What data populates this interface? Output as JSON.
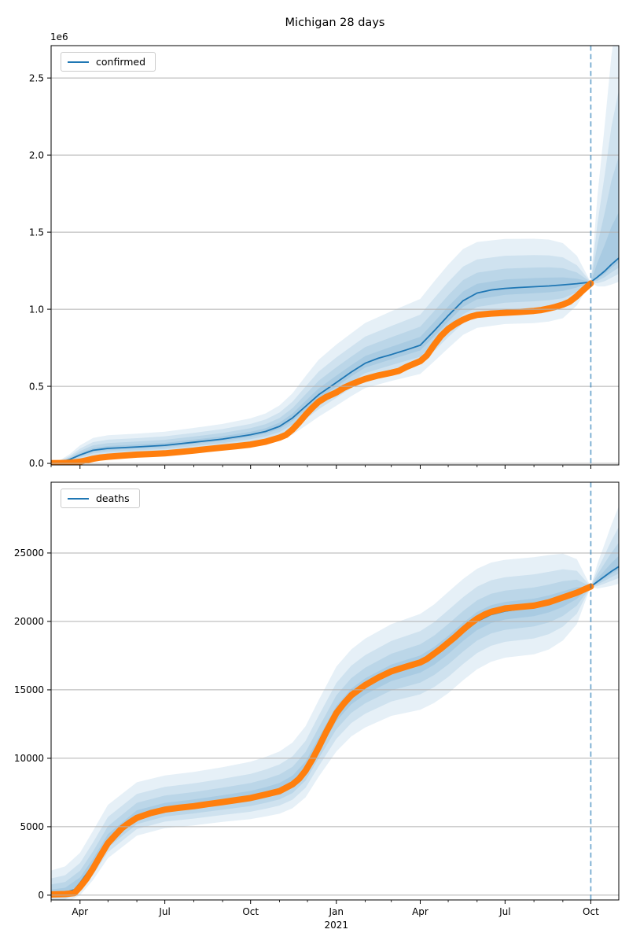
{
  "figure_title": "Michigan 28 days",
  "style": {
    "line_color": "#1f77b4",
    "marker_color": "#ff7f0e",
    "band_color_rgb": "31,119,180",
    "band_alpha": 0.11,
    "grid_color": "#b0b0b0",
    "spine_color": "#000000",
    "forecast_line_color": "rgba(31,119,180,0.65)"
  },
  "x_axis": {
    "start_date": "2020-03-01",
    "end_date": "2021-10-31",
    "days_total": 609,
    "forecast_start_day": 579,
    "forecast_horizon_days": 28,
    "major_ticks": [
      {
        "day": 31,
        "label": "Apr"
      },
      {
        "day": 122,
        "label": "Jul"
      },
      {
        "day": 214,
        "label": "Oct"
      },
      {
        "day": 306,
        "label": "Jan",
        "sublabel": "2021"
      },
      {
        "day": 396,
        "label": "Apr"
      },
      {
        "day": 487,
        "label": "Jul"
      },
      {
        "day": 579,
        "label": "Oct"
      }
    ],
    "minor_tick_days": [
      0,
      61,
      92,
      153,
      184,
      245,
      275,
      337,
      365,
      426,
      457,
      518,
      549
    ]
  },
  "chart_data": [
    {
      "type": "line",
      "title": "Michigan 28 days",
      "legend_label": "confirmed",
      "offset_label": "1e6",
      "ylim": [
        -10000,
        2710000
      ],
      "grid": true,
      "legend_position": "upper-left",
      "yticks": [
        {
          "v": 0,
          "label": "0.0"
        },
        {
          "v": 500000,
          "label": "0.5"
        },
        {
          "v": 1000000,
          "label": "1.0"
        },
        {
          "v": 1500000,
          "label": "1.5"
        },
        {
          "v": 2000000,
          "label": "2.0"
        },
        {
          "v": 2500000,
          "label": "2.5"
        }
      ],
      "actual": [
        [
          0,
          1000
        ],
        [
          10,
          2000
        ],
        [
          20,
          4000
        ],
        [
          31,
          11000
        ],
        [
          38,
          20000
        ],
        [
          45,
          30000
        ],
        [
          53,
          38000
        ],
        [
          61,
          43000
        ],
        [
          76,
          50000
        ],
        [
          92,
          57000
        ],
        [
          107,
          61000
        ],
        [
          122,
          65000
        ],
        [
          137,
          73000
        ],
        [
          153,
          83000
        ],
        [
          168,
          93000
        ],
        [
          184,
          103000
        ],
        [
          199,
          112000
        ],
        [
          214,
          122000
        ],
        [
          230,
          140000
        ],
        [
          245,
          167000
        ],
        [
          252,
          185000
        ],
        [
          259,
          220000
        ],
        [
          266,
          265000
        ],
        [
          273,
          315000
        ],
        [
          280,
          360000
        ],
        [
          287,
          400000
        ],
        [
          295,
          430000
        ],
        [
          306,
          460000
        ],
        [
          314,
          490000
        ],
        [
          322,
          512000
        ],
        [
          330,
          532000
        ],
        [
          337,
          548000
        ],
        [
          351,
          570000
        ],
        [
          365,
          588000
        ],
        [
          373,
          600000
        ],
        [
          381,
          625000
        ],
        [
          389,
          645000
        ],
        [
          396,
          663000
        ],
        [
          403,
          700000
        ],
        [
          411,
          770000
        ],
        [
          418,
          825000
        ],
        [
          426,
          872000
        ],
        [
          434,
          905000
        ],
        [
          442,
          932000
        ],
        [
          449,
          950000
        ],
        [
          457,
          963000
        ],
        [
          472,
          972000
        ],
        [
          487,
          977000
        ],
        [
          502,
          982000
        ],
        [
          518,
          989000
        ],
        [
          526,
          995000
        ],
        [
          534,
          1005000
        ],
        [
          541,
          1015000
        ],
        [
          549,
          1030000
        ],
        [
          556,
          1048000
        ],
        [
          564,
          1085000
        ],
        [
          571,
          1125000
        ],
        [
          579,
          1168000
        ]
      ],
      "median": [
        [
          0,
          2000
        ],
        [
          10,
          8000
        ],
        [
          20,
          25000
        ],
        [
          31,
          55000
        ],
        [
          45,
          85000
        ],
        [
          61,
          97000
        ],
        [
          92,
          107000
        ],
        [
          122,
          117000
        ],
        [
          153,
          137000
        ],
        [
          184,
          158000
        ],
        [
          214,
          186000
        ],
        [
          230,
          207000
        ],
        [
          245,
          240000
        ],
        [
          259,
          295000
        ],
        [
          273,
          370000
        ],
        [
          287,
          445000
        ],
        [
          306,
          525000
        ],
        [
          322,
          592000
        ],
        [
          337,
          650000
        ],
        [
          351,
          682000
        ],
        [
          365,
          706000
        ],
        [
          381,
          736000
        ],
        [
          396,
          766000
        ],
        [
          411,
          860000
        ],
        [
          426,
          958000
        ],
        [
          442,
          1055000
        ],
        [
          457,
          1105000
        ],
        [
          472,
          1125000
        ],
        [
          487,
          1135000
        ],
        [
          502,
          1141000
        ],
        [
          518,
          1146000
        ],
        [
          534,
          1151000
        ],
        [
          549,
          1158000
        ],
        [
          564,
          1166000
        ],
        [
          579,
          1176000
        ],
        [
          586,
          1208000
        ],
        [
          594,
          1248000
        ],
        [
          601,
          1290000
        ],
        [
          609,
          1332000
        ]
      ],
      "band": [
        [
          0,
          6000,
          3000
        ],
        [
          10,
          15000,
          6000
        ],
        [
          20,
          35000,
          15000
        ],
        [
          31,
          62000,
          40000
        ],
        [
          45,
          80000,
          52000
        ],
        [
          61,
          86000,
          56000
        ],
        [
          92,
          86000,
          56000
        ],
        [
          122,
          89000,
          58000
        ],
        [
          153,
          93000,
          61000
        ],
        [
          184,
          98000,
          66000
        ],
        [
          214,
          106000,
          73000
        ],
        [
          230,
          117000,
          80000
        ],
        [
          245,
          136000,
          92000
        ],
        [
          259,
          160000,
          108000
        ],
        [
          273,
          196000,
          126000
        ],
        [
          287,
          228000,
          142000
        ],
        [
          306,
          246000,
          151000
        ],
        [
          322,
          251000,
          156000
        ],
        [
          337,
          261000,
          161000
        ],
        [
          365,
          281000,
          171000
        ],
        [
          396,
          301000,
          186000
        ],
        [
          411,
          321000,
          198000
        ],
        [
          426,
          331000,
          211000
        ],
        [
          442,
          336000,
          221000
        ],
        [
          457,
          331000,
          226000
        ],
        [
          487,
          321000,
          231000
        ],
        [
          518,
          311000,
          236000
        ],
        [
          534,
          301000,
          231000
        ],
        [
          549,
          271000,
          216000
        ],
        [
          564,
          181000,
          141000
        ],
        [
          579,
          0,
          0
        ],
        [
          586,
          520000,
          60000
        ],
        [
          594,
          950000,
          100000
        ],
        [
          601,
          1350000,
          130000
        ],
        [
          609,
          1650000,
          155000
        ]
      ],
      "band_fractions": [
        1,
        0.66,
        0.4,
        0.18
      ]
    },
    {
      "type": "line",
      "title": "",
      "legend_label": "deaths",
      "offset_label": "",
      "ylim": [
        -350,
        30170
      ],
      "grid": true,
      "legend_position": "upper-left",
      "yticks": [
        {
          "v": 0,
          "label": "0"
        },
        {
          "v": 5000,
          "label": "5000"
        },
        {
          "v": 10000,
          "label": "10000"
        },
        {
          "v": 15000,
          "label": "15000"
        },
        {
          "v": 20000,
          "label": "20000"
        },
        {
          "v": 25000,
          "label": "25000"
        }
      ],
      "actual": [
        [
          0,
          50
        ],
        [
          15,
          80
        ],
        [
          25,
          150
        ],
        [
          31,
          600
        ],
        [
          38,
          1200
        ],
        [
          45,
          1950
        ],
        [
          53,
          2900
        ],
        [
          61,
          3800
        ],
        [
          69,
          4400
        ],
        [
          76,
          4900
        ],
        [
          84,
          5300
        ],
        [
          92,
          5650
        ],
        [
          107,
          6000
        ],
        [
          122,
          6250
        ],
        [
          137,
          6380
        ],
        [
          153,
          6500
        ],
        [
          168,
          6650
        ],
        [
          184,
          6800
        ],
        [
          199,
          6950
        ],
        [
          214,
          7100
        ],
        [
          230,
          7350
        ],
        [
          245,
          7600
        ],
        [
          259,
          8100
        ],
        [
          266,
          8500
        ],
        [
          273,
          9100
        ],
        [
          280,
          9900
        ],
        [
          287,
          10800
        ],
        [
          295,
          11900
        ],
        [
          306,
          13300
        ],
        [
          314,
          14000
        ],
        [
          322,
          14600
        ],
        [
          330,
          15000
        ],
        [
          337,
          15350
        ],
        [
          351,
          15900
        ],
        [
          365,
          16350
        ],
        [
          381,
          16700
        ],
        [
          396,
          17000
        ],
        [
          403,
          17250
        ],
        [
          411,
          17650
        ],
        [
          418,
          18000
        ],
        [
          426,
          18450
        ],
        [
          434,
          18900
        ],
        [
          442,
          19400
        ],
        [
          449,
          19800
        ],
        [
          457,
          20200
        ],
        [
          465,
          20500
        ],
        [
          472,
          20700
        ],
        [
          487,
          20950
        ],
        [
          502,
          21050
        ],
        [
          518,
          21150
        ],
        [
          534,
          21400
        ],
        [
          549,
          21750
        ],
        [
          564,
          22100
        ],
        [
          579,
          22550
        ]
      ],
      "median": [
        [
          0,
          100
        ],
        [
          15,
          200
        ],
        [
          25,
          400
        ],
        [
          31,
          900
        ],
        [
          45,
          2200
        ],
        [
          61,
          4000
        ],
        [
          76,
          5100
        ],
        [
          92,
          5750
        ],
        [
          122,
          6300
        ],
        [
          153,
          6550
        ],
        [
          184,
          6850
        ],
        [
          214,
          7150
        ],
        [
          230,
          7400
        ],
        [
          245,
          7700
        ],
        [
          259,
          8200
        ],
        [
          273,
          9200
        ],
        [
          287,
          10900
        ],
        [
          306,
          13200
        ],
        [
          322,
          14450
        ],
        [
          337,
          15200
        ],
        [
          351,
          15750
        ],
        [
          365,
          16200
        ],
        [
          381,
          16550
        ],
        [
          396,
          16850
        ],
        [
          411,
          17450
        ],
        [
          426,
          18250
        ],
        [
          442,
          19200
        ],
        [
          457,
          20000
        ],
        [
          472,
          20500
        ],
        [
          487,
          20750
        ],
        [
          502,
          20900
        ],
        [
          518,
          21000
        ],
        [
          534,
          21250
        ],
        [
          549,
          21600
        ],
        [
          564,
          22050
        ],
        [
          579,
          22550
        ],
        [
          586,
          22900
        ],
        [
          594,
          23300
        ],
        [
          601,
          23650
        ],
        [
          609,
          24000
        ]
      ],
      "band": [
        [
          0,
          1700,
          700
        ],
        [
          15,
          1900,
          800
        ],
        [
          31,
          2200,
          900
        ],
        [
          45,
          2500,
          1100
        ],
        [
          61,
          2600,
          1300
        ],
        [
          92,
          2500,
          1400
        ],
        [
          122,
          2450,
          1400
        ],
        [
          153,
          2450,
          1450
        ],
        [
          184,
          2500,
          1500
        ],
        [
          214,
          2600,
          1600
        ],
        [
          230,
          2700,
          1650
        ],
        [
          245,
          2800,
          1750
        ],
        [
          259,
          2950,
          1850
        ],
        [
          273,
          3150,
          2050
        ],
        [
          287,
          3350,
          2250
        ],
        [
          306,
          3500,
          2700
        ],
        [
          322,
          3500,
          2850
        ],
        [
          337,
          3550,
          2950
        ],
        [
          365,
          3600,
          3100
        ],
        [
          396,
          3700,
          3300
        ],
        [
          411,
          3800,
          3400
        ],
        [
          426,
          3900,
          3500
        ],
        [
          442,
          3900,
          3500
        ],
        [
          457,
          3850,
          3500
        ],
        [
          472,
          3800,
          3450
        ],
        [
          487,
          3750,
          3400
        ],
        [
          518,
          3700,
          3400
        ],
        [
          534,
          3600,
          3300
        ],
        [
          549,
          3350,
          3000
        ],
        [
          564,
          2500,
          2250
        ],
        [
          579,
          0,
          0
        ],
        [
          586,
          1300,
          500
        ],
        [
          594,
          2400,
          800
        ],
        [
          601,
          3400,
          1050
        ],
        [
          609,
          4400,
          1250
        ]
      ],
      "band_fractions": [
        1,
        0.66,
        0.4,
        0.18
      ]
    }
  ]
}
